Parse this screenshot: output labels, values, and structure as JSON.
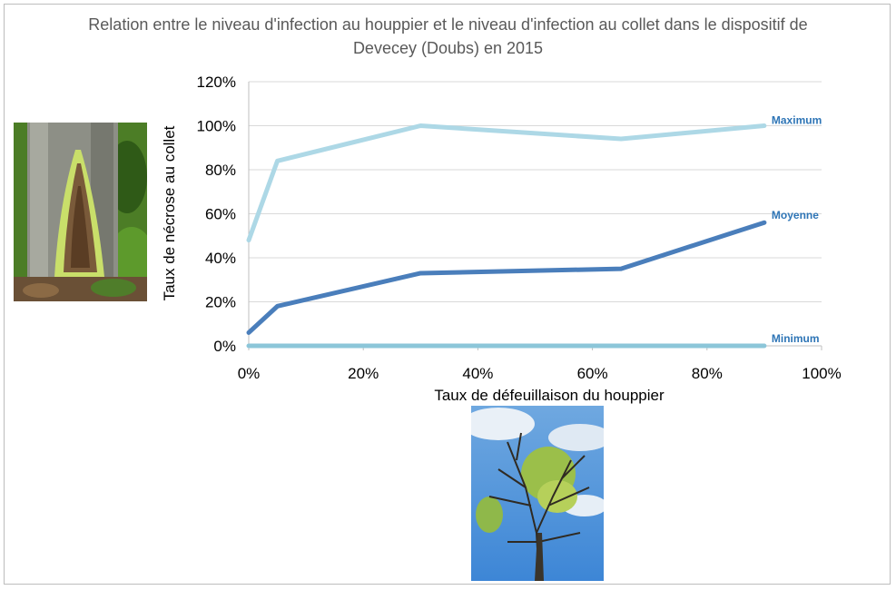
{
  "chart_data": {
    "type": "line",
    "title": "Relation entre le niveau d'infection au houppier et le niveau d'infection au collet dans le dispositif de Devecey (Doubs) en 2015",
    "xlabel": "Taux de défeuillaison du houppier",
    "ylabel": "Taux de nécrose au collet",
    "xlim": [
      0,
      100
    ],
    "ylim": [
      0,
      120
    ],
    "x_ticks": [
      "0%",
      "20%",
      "40%",
      "60%",
      "80%",
      "100%"
    ],
    "y_ticks": [
      "0%",
      "20%",
      "40%",
      "60%",
      "80%",
      "100%",
      "120%"
    ],
    "grid": "horizontal",
    "legend": "inline-right",
    "series": [
      {
        "name": "Maximum",
        "color": "#add8e6",
        "x": [
          0,
          5,
          30,
          65,
          90
        ],
        "y": [
          48,
          84,
          100,
          94,
          100
        ]
      },
      {
        "name": "Moyenne",
        "color": "#4a7ebb",
        "x": [
          0,
          5,
          30,
          65,
          90
        ],
        "y": [
          6,
          18,
          33,
          35,
          56
        ]
      },
      {
        "name": "Minimum",
        "color": "#8cc6d9",
        "x": [
          0,
          5,
          30,
          65,
          90
        ],
        "y": [
          0,
          0,
          0,
          0,
          0
        ]
      }
    ]
  },
  "label_colors": {
    "Maximum": "#2e75b6",
    "Moyenne": "#2e75b6",
    "Minimum": "#2e75b6"
  },
  "images": {
    "left": "tree-collar-necrosis-photo",
    "bottom": "ash-crown-dieback-photo"
  }
}
